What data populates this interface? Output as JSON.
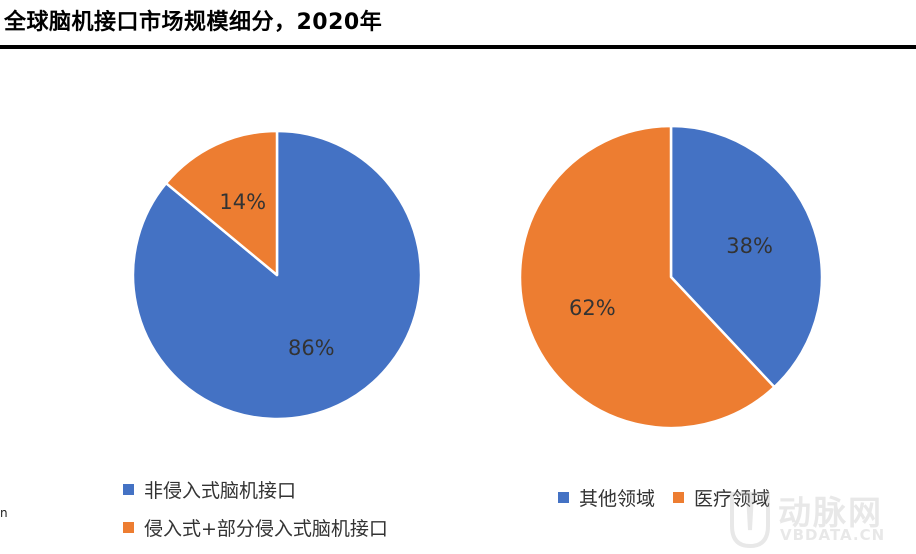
{
  "header": {
    "title": "全球脑机接口市场规模细分，2020年"
  },
  "colors": {
    "blue": "#4472C4",
    "orange": "#ED7D31",
    "text": "#333333"
  },
  "chart_data": [
    {
      "type": "pie",
      "slices": [
        {
          "label": "非侵入式脑机接口",
          "value": 86,
          "display": "86%",
          "color": "#4472C4"
        },
        {
          "label": "侵入式+部分侵入式脑机接口",
          "value": 14,
          "display": "14%",
          "color": "#ED7D31"
        }
      ],
      "legend_position": "bottom",
      "start": "12 o'clock, clockwise"
    },
    {
      "type": "pie",
      "slices": [
        {
          "label": "其他领域",
          "value": 38,
          "display": "38%",
          "color": "#4472C4"
        },
        {
          "label": "医疗领域",
          "value": 62,
          "display": "62%",
          "color": "#ED7D31"
        }
      ],
      "legend_position": "bottom",
      "start": "12 o'clock, clockwise"
    }
  ],
  "stray_text": "n",
  "watermark": {
    "name": "动脉网",
    "url": "VBDATA.CN"
  }
}
